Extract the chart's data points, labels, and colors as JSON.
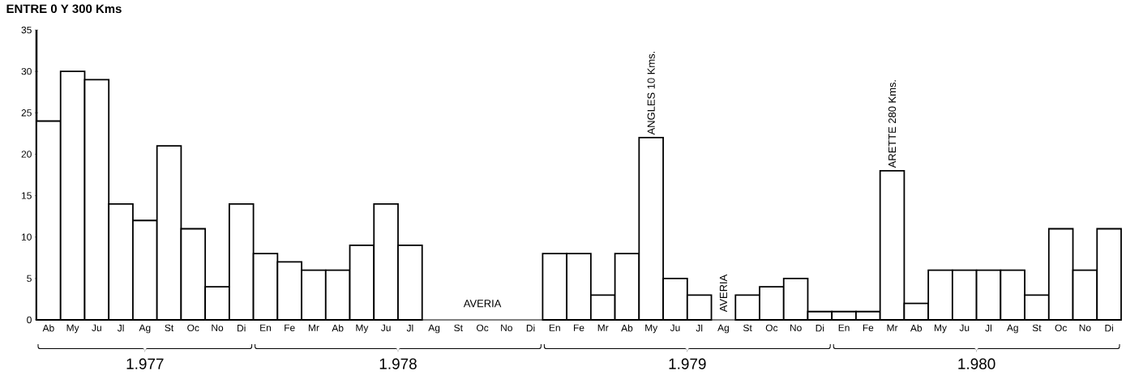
{
  "chart_data": {
    "type": "bar",
    "title": "ENTRE 0 Y 300 Kms",
    "categories": [
      "Ab",
      "My",
      "Ju",
      "Jl",
      "Ag",
      "St",
      "Oc",
      "No",
      "Di",
      "En",
      "Fe",
      "Mr",
      "Ab",
      "My",
      "Ju",
      "Jl",
      "Ag",
      "St",
      "Oc",
      "No",
      "Di",
      "En",
      "Fe",
      "Mr",
      "Ab",
      "My",
      "Ju",
      "Jl",
      "Ag",
      "St",
      "Oc",
      "No",
      "Di",
      "En",
      "Fe",
      "Mr",
      "Ab",
      "My",
      "Ju",
      "Jl",
      "Ag",
      "St",
      "Oc",
      "No",
      "Di"
    ],
    "values": [
      24,
      30,
      29,
      14,
      12,
      21,
      11,
      4,
      14,
      8,
      7,
      6,
      6,
      9,
      14,
      9,
      null,
      null,
      null,
      null,
      null,
      8,
      8,
      3,
      8,
      22,
      5,
      3,
      null,
      3,
      4,
      5,
      1,
      1,
      1,
      18,
      2,
      6,
      6,
      6,
      6,
      3,
      11,
      6,
      11
    ],
    "color": "#000000",
    "ylim": [
      0,
      35
    ],
    "yticks": [
      0,
      5,
      10,
      15,
      20,
      25,
      30,
      35
    ],
    "annotations": [
      "ANGLES 10 Kms.",
      "ARETTE 280 Kms.",
      "AVERIA",
      "AVERIA",
      "1.977",
      "1.978",
      "1.979",
      "1.980"
    ]
  }
}
